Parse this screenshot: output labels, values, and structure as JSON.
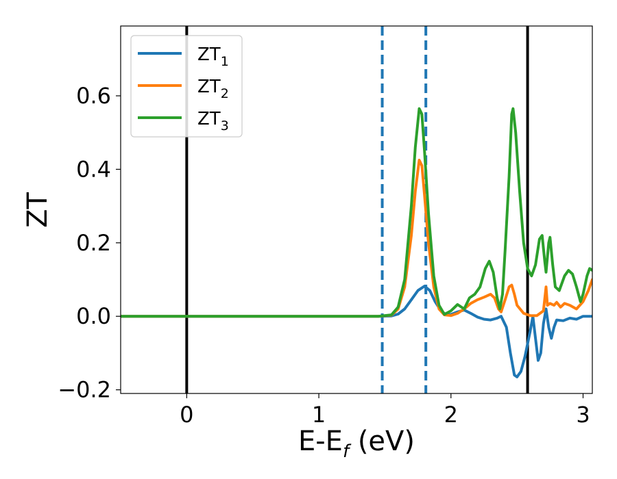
{
  "chart_data": {
    "type": "line",
    "xlabel": "E-E",
    "xlabel_sub": "f",
    "xlabel_unit": " (eV)",
    "ylabel": "ZT",
    "xlim": [
      -0.5,
      3.07
    ],
    "ylim": [
      -0.21,
      0.79
    ],
    "xticks": [
      0,
      1,
      2,
      3
    ],
    "xtick_labels": [
      "0",
      "1",
      "2",
      "3"
    ],
    "yticks": [
      -0.2,
      0.0,
      0.2,
      0.4,
      0.6
    ],
    "ytick_labels": [
      "−0.2",
      "0.0",
      "0.2",
      "0.4",
      "0.6"
    ],
    "grid": false,
    "legend_position": "top-left",
    "vlines": [
      {
        "x": 0.0,
        "style": "solid",
        "color": "#000000"
      },
      {
        "x": 2.58,
        "style": "solid",
        "color": "#000000"
      },
      {
        "x": 1.48,
        "style": "dashed",
        "color": "#1f77b4"
      },
      {
        "x": 1.81,
        "style": "dashed",
        "color": "#1f77b4"
      }
    ],
    "series": [
      {
        "name": "ZT",
        "subscript": "1",
        "color": "#1f77b4",
        "points": [
          [
            -0.5,
            0
          ],
          [
            1.45,
            0
          ],
          [
            1.55,
            0.001
          ],
          [
            1.6,
            0.006
          ],
          [
            1.65,
            0.02
          ],
          [
            1.7,
            0.045
          ],
          [
            1.75,
            0.07
          ],
          [
            1.8,
            0.082
          ],
          [
            1.84,
            0.07
          ],
          [
            1.88,
            0.04
          ],
          [
            1.93,
            0.012
          ],
          [
            1.97,
            0.004
          ],
          [
            2.0,
            0.005
          ],
          [
            2.05,
            0.012
          ],
          [
            2.1,
            0.017
          ],
          [
            2.15,
            0.008
          ],
          [
            2.2,
            -0.002
          ],
          [
            2.25,
            -0.008
          ],
          [
            2.3,
            -0.01
          ],
          [
            2.35,
            -0.005
          ],
          [
            2.38,
            0.0
          ],
          [
            2.42,
            -0.03
          ],
          [
            2.45,
            -0.1
          ],
          [
            2.48,
            -0.16
          ],
          [
            2.5,
            -0.165
          ],
          [
            2.53,
            -0.15
          ],
          [
            2.56,
            -0.11
          ],
          [
            2.6,
            -0.04
          ],
          [
            2.62,
            0.0
          ],
          [
            2.64,
            -0.06
          ],
          [
            2.66,
            -0.12
          ],
          [
            2.68,
            -0.1
          ],
          [
            2.7,
            -0.02
          ],
          [
            2.72,
            0.02
          ],
          [
            2.74,
            -0.03
          ],
          [
            2.76,
            -0.06
          ],
          [
            2.78,
            -0.03
          ],
          [
            2.8,
            -0.01
          ],
          [
            2.85,
            -0.012
          ],
          [
            2.9,
            -0.005
          ],
          [
            2.95,
            -0.008
          ],
          [
            3.0,
            0.0
          ],
          [
            3.07,
            0.0
          ]
        ]
      },
      {
        "name": "ZT",
        "subscript": "2",
        "color": "#ff7f0e",
        "points": [
          [
            -0.5,
            0
          ],
          [
            1.45,
            0
          ],
          [
            1.55,
            0.003
          ],
          [
            1.6,
            0.02
          ],
          [
            1.65,
            0.08
          ],
          [
            1.7,
            0.22
          ],
          [
            1.73,
            0.34
          ],
          [
            1.76,
            0.425
          ],
          [
            1.78,
            0.41
          ],
          [
            1.8,
            0.33
          ],
          [
            1.83,
            0.2
          ],
          [
            1.87,
            0.08
          ],
          [
            1.91,
            0.02
          ],
          [
            1.95,
            0.004
          ],
          [
            2.0,
            0.002
          ],
          [
            2.05,
            0.008
          ],
          [
            2.1,
            0.02
          ],
          [
            2.15,
            0.035
          ],
          [
            2.2,
            0.045
          ],
          [
            2.25,
            0.052
          ],
          [
            2.3,
            0.06
          ],
          [
            2.33,
            0.05
          ],
          [
            2.36,
            0.02
          ],
          [
            2.38,
            0.012
          ],
          [
            2.41,
            0.045
          ],
          [
            2.44,
            0.08
          ],
          [
            2.46,
            0.085
          ],
          [
            2.48,
            0.06
          ],
          [
            2.5,
            0.03
          ],
          [
            2.55,
            0.008
          ],
          [
            2.6,
            0.002
          ],
          [
            2.65,
            0.002
          ],
          [
            2.7,
            0.015
          ],
          [
            2.72,
            0.08
          ],
          [
            2.73,
            0.03
          ],
          [
            2.75,
            0.035
          ],
          [
            2.78,
            0.03
          ],
          [
            2.8,
            0.038
          ],
          [
            2.83,
            0.025
          ],
          [
            2.86,
            0.035
          ],
          [
            2.9,
            0.03
          ],
          [
            2.95,
            0.02
          ],
          [
            3.0,
            0.04
          ],
          [
            3.04,
            0.07
          ],
          [
            3.07,
            0.1
          ]
        ]
      },
      {
        "name": "ZT",
        "subscript": "3",
        "color": "#2ca02c",
        "points": [
          [
            -0.5,
            0
          ],
          [
            1.45,
            0
          ],
          [
            1.55,
            0.004
          ],
          [
            1.6,
            0.025
          ],
          [
            1.65,
            0.1
          ],
          [
            1.7,
            0.3
          ],
          [
            1.73,
            0.46
          ],
          [
            1.76,
            0.565
          ],
          [
            1.78,
            0.55
          ],
          [
            1.8,
            0.45
          ],
          [
            1.83,
            0.28
          ],
          [
            1.87,
            0.11
          ],
          [
            1.91,
            0.03
          ],
          [
            1.95,
            0.005
          ],
          [
            2.0,
            0.015
          ],
          [
            2.05,
            0.032
          ],
          [
            2.1,
            0.02
          ],
          [
            2.14,
            0.05
          ],
          [
            2.18,
            0.06
          ],
          [
            2.22,
            0.08
          ],
          [
            2.26,
            0.13
          ],
          [
            2.29,
            0.15
          ],
          [
            2.32,
            0.12
          ],
          [
            2.35,
            0.05
          ],
          [
            2.37,
            0.02
          ],
          [
            2.39,
            0.06
          ],
          [
            2.41,
            0.18
          ],
          [
            2.44,
            0.38
          ],
          [
            2.46,
            0.55
          ],
          [
            2.47,
            0.565
          ],
          [
            2.49,
            0.5
          ],
          [
            2.52,
            0.34
          ],
          [
            2.55,
            0.2
          ],
          [
            2.58,
            0.13
          ],
          [
            2.61,
            0.11
          ],
          [
            2.64,
            0.14
          ],
          [
            2.67,
            0.21
          ],
          [
            2.69,
            0.22
          ],
          [
            2.71,
            0.15
          ],
          [
            2.72,
            0.12
          ],
          [
            2.74,
            0.2
          ],
          [
            2.75,
            0.215
          ],
          [
            2.77,
            0.14
          ],
          [
            2.79,
            0.08
          ],
          [
            2.82,
            0.07
          ],
          [
            2.86,
            0.11
          ],
          [
            2.89,
            0.125
          ],
          [
            2.92,
            0.115
          ],
          [
            2.95,
            0.08
          ],
          [
            2.98,
            0.04
          ],
          [
            3.0,
            0.06
          ],
          [
            3.03,
            0.11
          ],
          [
            3.05,
            0.13
          ],
          [
            3.07,
            0.125
          ]
        ]
      }
    ]
  }
}
